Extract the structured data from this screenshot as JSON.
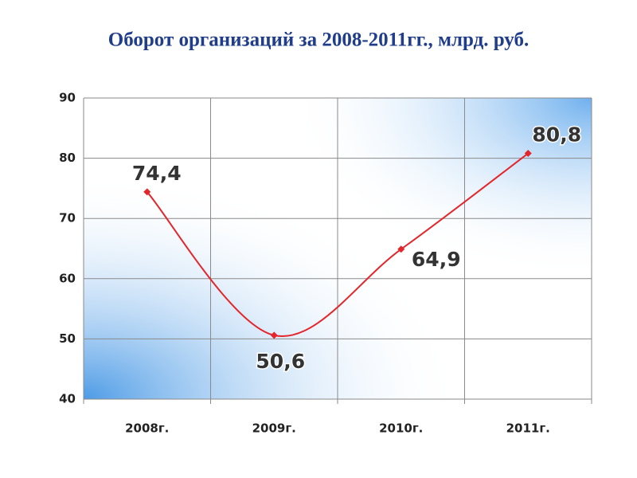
{
  "chart_data": {
    "type": "line",
    "title": "Оборот организаций за 2008-2011гг., млрд. руб.",
    "categories": [
      "2008г.",
      "2009г.",
      "2010г.",
      "2011г."
    ],
    "series": [
      {
        "name": "Оборот",
        "color": "#e3262b",
        "values": [
          74.4,
          50.6,
          64.9,
          80.8
        ],
        "value_labels": [
          "74,4",
          "50,6",
          "64,9",
          "80,8"
        ]
      }
    ],
    "ylim": [
      40,
      90
    ],
    "yticks": [
      40,
      50,
      60,
      70,
      80,
      90
    ],
    "grid": true,
    "smooth": true
  }
}
